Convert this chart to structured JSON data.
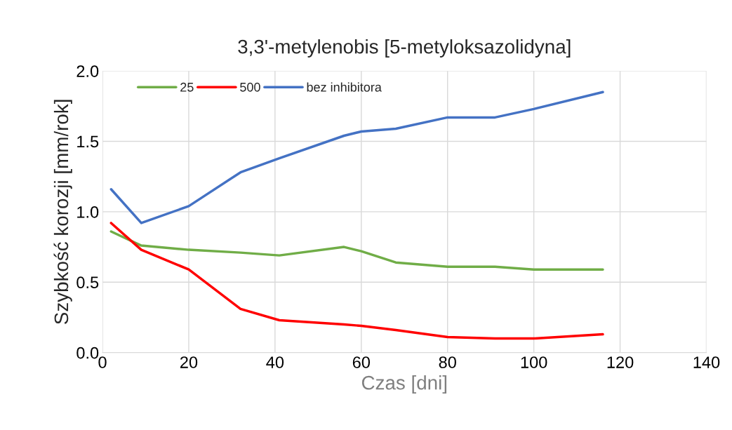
{
  "chart_data": {
    "type": "line",
    "title": "3,3'-metylenobis [5-metyloksazolidyna]",
    "xlabel": "Czas [dni]",
    "ylabel": "Szybkość korozji [mm/rok]",
    "x": [
      2,
      9,
      20,
      32,
      41,
      56,
      60,
      68,
      80,
      91,
      100,
      116
    ],
    "series": [
      {
        "name": "25",
        "color": "#70ad47",
        "values": [
          0.86,
          0.76,
          0.73,
          0.71,
          0.69,
          0.75,
          0.72,
          0.64,
          0.61,
          0.61,
          0.59,
          0.59
        ]
      },
      {
        "name": "500",
        "color": "#ff0000",
        "values": [
          0.92,
          0.73,
          0.59,
          0.31,
          0.23,
          0.2,
          0.19,
          0.16,
          0.11,
          0.1,
          0.1,
          0.13
        ]
      },
      {
        "name": "bez inhibitora",
        "color": "#4472c4",
        "values": [
          1.16,
          0.92,
          1.04,
          1.28,
          1.38,
          1.54,
          1.57,
          1.59,
          1.67,
          1.67,
          1.73,
          1.85
        ]
      }
    ],
    "xlim": [
      0,
      140
    ],
    "xticks": [
      0,
      20,
      40,
      60,
      80,
      100,
      120,
      140
    ],
    "ylim": [
      0,
      2
    ],
    "yticks": [
      {
        "value": 0,
        "label": "0.0"
      },
      {
        "value": 0.5,
        "label": "0.5"
      },
      {
        "value": 1,
        "label": "1.0"
      },
      {
        "value": 1.5,
        "label": "1.5"
      },
      {
        "value": 2,
        "label": "2.0"
      }
    ],
    "grid": true,
    "legend": "top left",
    "marker": "none",
    "line_style": "solid"
  }
}
